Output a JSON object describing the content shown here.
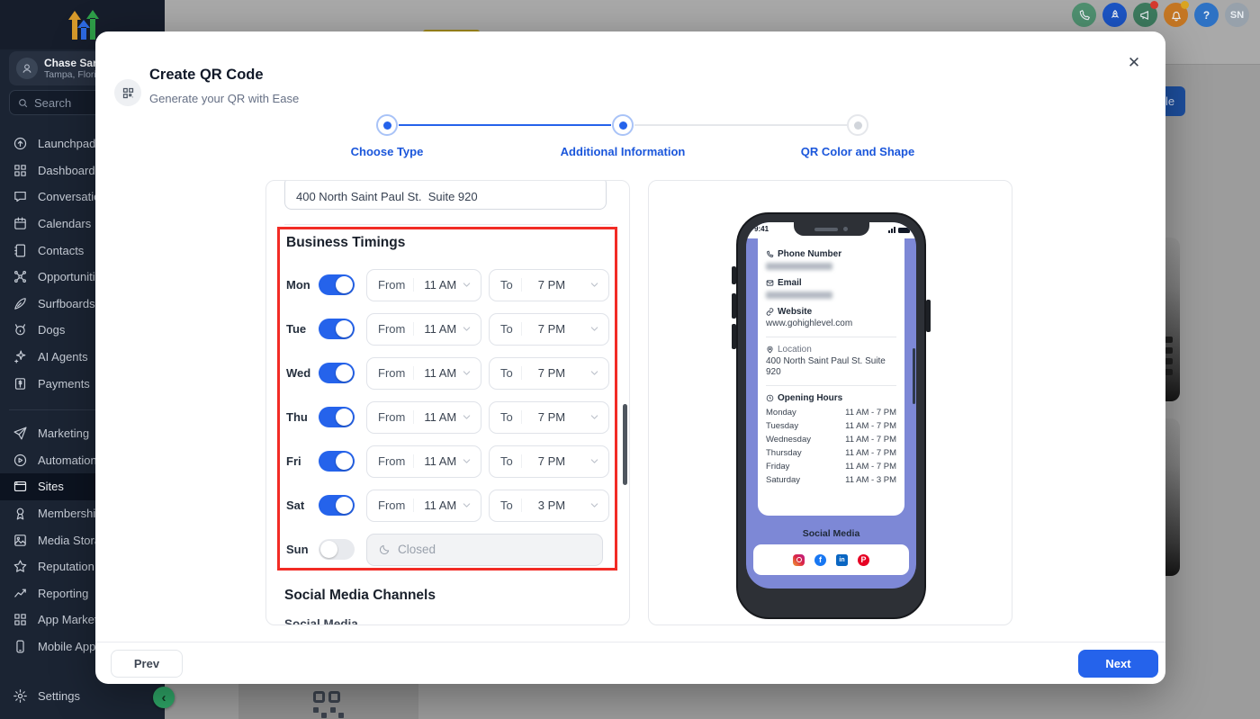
{
  "colors": {
    "accent": "#2563eb",
    "highlight_red": "#f22b25",
    "periwinkle": "#7d88d6"
  },
  "sidebar": {
    "account": {
      "name": "Chase Sandbox",
      "location": "Tampa, Florida"
    },
    "search_placeholder": "Search",
    "items_primary": [
      {
        "label": "Launchpad",
        "icon": "launchpad"
      },
      {
        "label": "Dashboard",
        "icon": "dashboard"
      },
      {
        "label": "Conversations",
        "icon": "conversations"
      },
      {
        "label": "Calendars",
        "icon": "calendars"
      },
      {
        "label": "Contacts",
        "icon": "contacts"
      },
      {
        "label": "Opportunities",
        "icon": "opportunities"
      },
      {
        "label": "Surfboards",
        "icon": "surfboards"
      },
      {
        "label": "Dogs",
        "icon": "dogs"
      },
      {
        "label": "AI Agents",
        "icon": "ai-agents"
      },
      {
        "label": "Payments",
        "icon": "payments"
      }
    ],
    "items_secondary": [
      {
        "label": "Marketing",
        "icon": "marketing"
      },
      {
        "label": "Automation",
        "icon": "automation"
      },
      {
        "label": "Sites",
        "icon": "sites",
        "active": true
      },
      {
        "label": "Memberships",
        "icon": "memberships"
      },
      {
        "label": "Media Storage",
        "icon": "media-storage"
      },
      {
        "label": "Reputation",
        "icon": "reputation"
      },
      {
        "label": "Reporting",
        "icon": "reporting"
      },
      {
        "label": "App Marketplace",
        "icon": "app-marketplace"
      },
      {
        "label": "Mobile App",
        "icon": "mobile-app"
      }
    ],
    "settings_label": "Settings"
  },
  "topbar": {
    "avatar_initials": "SN",
    "partial_button_text": "le"
  },
  "modal": {
    "title": "Create QR Code",
    "subtitle": "Generate your QR with Ease",
    "steps": [
      {
        "label": "Choose Type",
        "state": "on"
      },
      {
        "label": "Additional Information",
        "state": "on"
      },
      {
        "label": "QR Color and Shape",
        "state": "off"
      }
    ],
    "form": {
      "address_value": "400 North Saint Paul St.  Suite 920",
      "business_timings_title": "Business Timings",
      "from_label": "From",
      "to_label": "To",
      "closed_label": "Closed",
      "rows": [
        {
          "day": "Mon",
          "enabled": true,
          "from": "11 AM",
          "to": "7 PM"
        },
        {
          "day": "Tue",
          "enabled": true,
          "from": "11 AM",
          "to": "7 PM"
        },
        {
          "day": "Wed",
          "enabled": true,
          "from": "11 AM",
          "to": "7 PM"
        },
        {
          "day": "Thu",
          "enabled": true,
          "from": "11 AM",
          "to": "7 PM"
        },
        {
          "day": "Fri",
          "enabled": true,
          "from": "11 AM",
          "to": "7 PM"
        },
        {
          "day": "Sat",
          "enabled": true,
          "from": "11 AM",
          "to": "3 PM"
        },
        {
          "day": "Sun",
          "enabled": false
        }
      ],
      "social_channels_title": "Social Media Channels",
      "social_cut_text": "Social Media"
    },
    "preview": {
      "status_time": "9:41",
      "phone_label": "Phone Number",
      "email_label": "Email",
      "website_label": "Website",
      "website_value": "www.gohighlevel.com",
      "location_label": "Location",
      "location_value": "400 North Saint Paul St. Suite 920",
      "hours_label": "Opening Hours",
      "hours": [
        {
          "day": "Monday",
          "time": "11 AM - 7 PM"
        },
        {
          "day": "Tuesday",
          "time": "11 AM - 7 PM"
        },
        {
          "day": "Wednesday",
          "time": "11 AM - 7 PM"
        },
        {
          "day": "Thursday",
          "time": "11 AM - 7 PM"
        },
        {
          "day": "Friday",
          "time": "11 AM - 7 PM"
        },
        {
          "day": "Saturday",
          "time": "11 AM - 3 PM"
        }
      ],
      "social_label": "Social Media",
      "social_icons": [
        "instagram",
        "facebook",
        "linkedin",
        "pinterest"
      ]
    },
    "prev_label": "Prev",
    "next_label": "Next"
  }
}
